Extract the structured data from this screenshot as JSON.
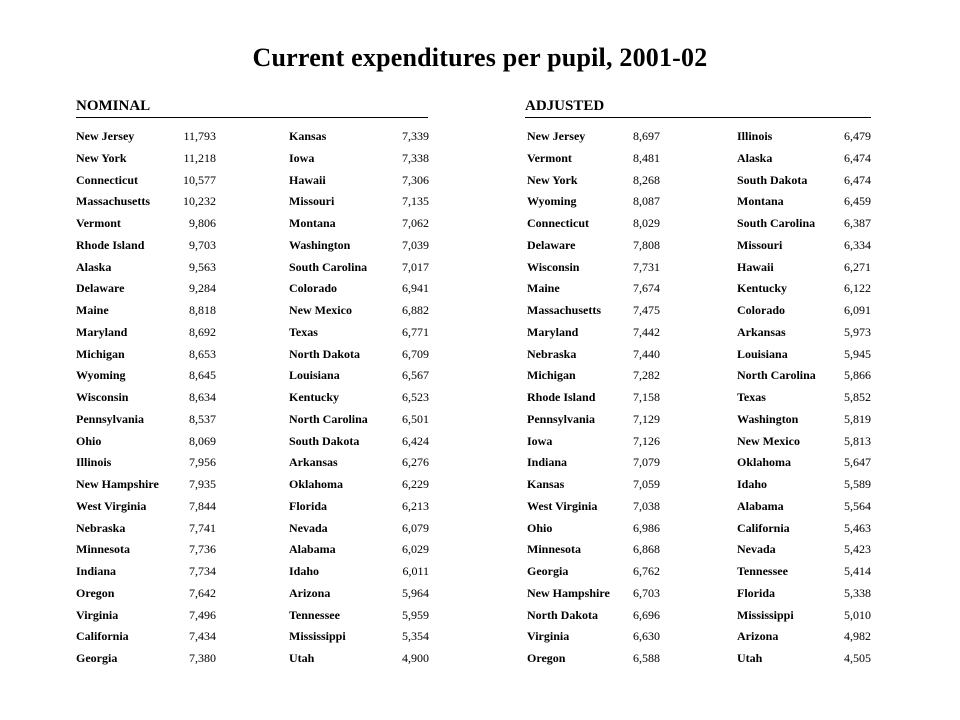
{
  "title": "Current expenditures per pupil, 2001-02",
  "nominal": {
    "heading": "NOMINAL",
    "column1": [
      {
        "state": "New Jersey",
        "value": "11,793"
      },
      {
        "state": "New York",
        "value": "11,218"
      },
      {
        "state": "Connecticut",
        "value": "10,577"
      },
      {
        "state": "Massachusetts",
        "value": "10,232"
      },
      {
        "state": "Vermont",
        "value": "9,806"
      },
      {
        "state": "Rhode Island",
        "value": "9,703"
      },
      {
        "state": "Alaska",
        "value": "9,563"
      },
      {
        "state": "Delaware",
        "value": "9,284"
      },
      {
        "state": "Maine",
        "value": "8,818"
      },
      {
        "state": "Maryland",
        "value": "8,692"
      },
      {
        "state": "Michigan",
        "value": "8,653"
      },
      {
        "state": "Wyoming",
        "value": "8,645"
      },
      {
        "state": "Wisconsin",
        "value": "8,634"
      },
      {
        "state": "Pennsylvania",
        "value": "8,537"
      },
      {
        "state": "Ohio",
        "value": "8,069"
      },
      {
        "state": "Illinois",
        "value": "7,956"
      },
      {
        "state": "New Hampshire",
        "value": "7,935"
      },
      {
        "state": "West Virginia",
        "value": "7,844"
      },
      {
        "state": "Nebraska",
        "value": "7,741"
      },
      {
        "state": "Minnesota",
        "value": "7,736"
      },
      {
        "state": "Indiana",
        "value": "7,734"
      },
      {
        "state": "Oregon",
        "value": "7,642"
      },
      {
        "state": "Virginia",
        "value": "7,496"
      },
      {
        "state": "California",
        "value": "7,434"
      },
      {
        "state": "Georgia",
        "value": "7,380"
      }
    ],
    "column2": [
      {
        "state": "Kansas",
        "value": "7,339"
      },
      {
        "state": "Iowa",
        "value": "7,338"
      },
      {
        "state": "Hawaii",
        "value": "7,306"
      },
      {
        "state": "Missouri",
        "value": "7,135"
      },
      {
        "state": "Montana",
        "value": "7,062"
      },
      {
        "state": "Washington",
        "value": "7,039"
      },
      {
        "state": "South Carolina",
        "value": "7,017"
      },
      {
        "state": "Colorado",
        "value": "6,941"
      },
      {
        "state": "New Mexico",
        "value": "6,882"
      },
      {
        "state": "Texas",
        "value": "6,771"
      },
      {
        "state": "North Dakota",
        "value": "6,709"
      },
      {
        "state": "Louisiana",
        "value": "6,567"
      },
      {
        "state": "Kentucky",
        "value": "6,523"
      },
      {
        "state": "North Carolina",
        "value": "6,501"
      },
      {
        "state": "South Dakota",
        "value": "6,424"
      },
      {
        "state": "Arkansas",
        "value": "6,276"
      },
      {
        "state": "Oklahoma",
        "value": "6,229"
      },
      {
        "state": "Florida",
        "value": "6,213"
      },
      {
        "state": "Nevada",
        "value": "6,079"
      },
      {
        "state": "Alabama",
        "value": "6,029"
      },
      {
        "state": "Idaho",
        "value": "6,011"
      },
      {
        "state": "Arizona",
        "value": "5,964"
      },
      {
        "state": "Tennessee",
        "value": "5,959"
      },
      {
        "state": "Mississippi",
        "value": "5,354"
      },
      {
        "state": "Utah",
        "value": "4,900"
      }
    ]
  },
  "adjusted": {
    "heading": "ADJUSTED",
    "column1": [
      {
        "state": "New Jersey",
        "value": "8,697"
      },
      {
        "state": "Vermont",
        "value": "8,481"
      },
      {
        "state": "New York",
        "value": "8,268"
      },
      {
        "state": "Wyoming",
        "value": "8,087"
      },
      {
        "state": "Connecticut",
        "value": "8,029"
      },
      {
        "state": "Delaware",
        "value": "7,808"
      },
      {
        "state": "Wisconsin",
        "value": "7,731"
      },
      {
        "state": "Maine",
        "value": "7,674"
      },
      {
        "state": "Massachusetts",
        "value": "7,475"
      },
      {
        "state": "Maryland",
        "value": "7,442"
      },
      {
        "state": "Nebraska",
        "value": "7,440"
      },
      {
        "state": "Michigan",
        "value": "7,282"
      },
      {
        "state": "Rhode Island",
        "value": "7,158"
      },
      {
        "state": "Pennsylvania",
        "value": "7,129"
      },
      {
        "state": "Iowa",
        "value": "7,126"
      },
      {
        "state": "Indiana",
        "value": "7,079"
      },
      {
        "state": "Kansas",
        "value": "7,059"
      },
      {
        "state": "West Virginia",
        "value": "7,038"
      },
      {
        "state": "Ohio",
        "value": "6,986"
      },
      {
        "state": "Minnesota",
        "value": "6,868"
      },
      {
        "state": "Georgia",
        "value": "6,762"
      },
      {
        "state": "New Hampshire",
        "value": "6,703"
      },
      {
        "state": "North Dakota",
        "value": "6,696"
      },
      {
        "state": "Virginia",
        "value": "6,630"
      },
      {
        "state": "Oregon",
        "value": "6,588"
      }
    ],
    "column2": [
      {
        "state": "Illinois",
        "value": "6,479"
      },
      {
        "state": "Alaska",
        "value": "6,474"
      },
      {
        "state": "South Dakota",
        "value": "6,474"
      },
      {
        "state": "Montana",
        "value": "6,459"
      },
      {
        "state": "South Carolina",
        "value": "6,387"
      },
      {
        "state": "Missouri",
        "value": "6,334"
      },
      {
        "state": "Hawaii",
        "value": "6,271"
      },
      {
        "state": "Kentucky",
        "value": "6,122"
      },
      {
        "state": "Colorado",
        "value": "6,091"
      },
      {
        "state": "Arkansas",
        "value": "5,973"
      },
      {
        "state": "Louisiana",
        "value": "5,945"
      },
      {
        "state": "North Carolina",
        "value": "5,866"
      },
      {
        "state": "Texas",
        "value": "5,852"
      },
      {
        "state": "Washington",
        "value": "5,819"
      },
      {
        "state": "New Mexico",
        "value": "5,813"
      },
      {
        "state": "Oklahoma",
        "value": "5,647"
      },
      {
        "state": "Idaho",
        "value": "5,589"
      },
      {
        "state": "Alabama",
        "value": "5,564"
      },
      {
        "state": "California",
        "value": "5,463"
      },
      {
        "state": "Nevada",
        "value": "5,423"
      },
      {
        "state": "Tennessee",
        "value": "5,414"
      },
      {
        "state": "Florida",
        "value": "5,338"
      },
      {
        "state": "Mississippi",
        "value": "5,010"
      },
      {
        "state": "Arizona",
        "value": "4,982"
      },
      {
        "state": "Utah",
        "value": "4,505"
      }
    ]
  }
}
